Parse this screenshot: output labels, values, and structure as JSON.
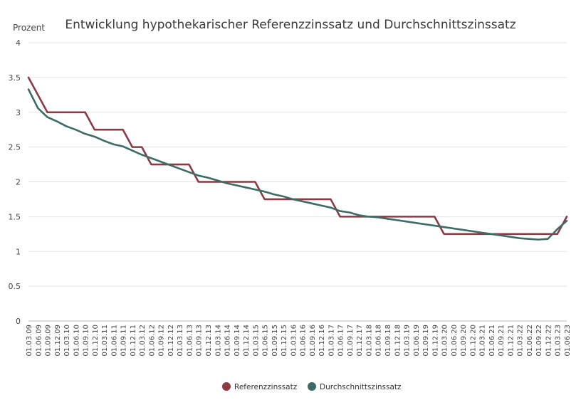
{
  "chart_data": {
    "type": "line",
    "title": "Entwicklung hypothekarischer Referenzzinssatz und Durchschnittszinssatz",
    "ylabel": "Prozent",
    "xlabel": "",
    "ylim": [
      0,
      4
    ],
    "yticks": [
      {
        "value": 0,
        "label": "0"
      },
      {
        "value": 0.5,
        "label": "0.5"
      },
      {
        "value": 1,
        "label": "1"
      },
      {
        "value": 1.5,
        "label": "1.5"
      },
      {
        "value": 2,
        "label": "2"
      },
      {
        "value": 2.5,
        "label": "2.5"
      },
      {
        "value": 3,
        "label": "3"
      },
      {
        "value": 3.5,
        "label": "3.5"
      },
      {
        "value": 4,
        "label": "4"
      }
    ],
    "grid": true,
    "legend_position": "bottom-center",
    "categories": [
      "01.03.09",
      "01.06.09",
      "01.09.09",
      "01.12.09",
      "01.03.10",
      "01.06.10",
      "01.09.10",
      "01.12.10",
      "01.03.11",
      "01.06.11",
      "01.09.11",
      "01.12.11",
      "01.03.12",
      "01.06.12",
      "01.09.12",
      "01.12.12",
      "01.03.13",
      "01.06.13",
      "01.09.13",
      "01.12.13",
      "01.03.14",
      "01.06.14",
      "01.09.14",
      "01.12.14",
      "01.03.15",
      "01.06.15",
      "01.09.15",
      "01.12.15",
      "01.03.16",
      "01.06.16",
      "01.09.16",
      "01.12.16",
      "01.03.17",
      "01.06.17",
      "01.09.17",
      "01.12.17",
      "01.03.18",
      "01.06.18",
      "01.09.18",
      "01.12.18",
      "01.03.19",
      "01.06.19",
      "01.09.19",
      "01.12.19",
      "01.03.20",
      "01.06.20",
      "01.09.20",
      "01.12.20",
      "01.03.21",
      "01.06.21",
      "01.09.21",
      "01.12.21",
      "01.03.22",
      "01.06.22",
      "01.09.22",
      "01.12.22",
      "01.03.23",
      "01.06.23"
    ],
    "series": [
      {
        "name": "Referenzzinssatz",
        "color": "#8b3a45",
        "values": [
          3.5,
          3.25,
          3.0,
          3.0,
          3.0,
          3.0,
          3.0,
          2.75,
          2.75,
          2.75,
          2.75,
          2.5,
          2.5,
          2.25,
          2.25,
          2.25,
          2.25,
          2.25,
          2.0,
          2.0,
          2.0,
          2.0,
          2.0,
          2.0,
          2.0,
          1.75,
          1.75,
          1.75,
          1.75,
          1.75,
          1.75,
          1.75,
          1.75,
          1.5,
          1.5,
          1.5,
          1.5,
          1.5,
          1.5,
          1.5,
          1.5,
          1.5,
          1.5,
          1.5,
          1.25,
          1.25,
          1.25,
          1.25,
          1.25,
          1.25,
          1.25,
          1.25,
          1.25,
          1.25,
          1.25,
          1.25,
          1.25,
          1.5
        ]
      },
      {
        "name": "Durchschnittszinssatz",
        "color": "#3d6b65",
        "values": [
          3.33,
          3.06,
          2.93,
          2.87,
          2.8,
          2.75,
          2.69,
          2.65,
          2.59,
          2.54,
          2.51,
          2.45,
          2.39,
          2.34,
          2.29,
          2.24,
          2.19,
          2.14,
          2.09,
          2.06,
          2.02,
          1.98,
          1.95,
          1.92,
          1.89,
          1.86,
          1.82,
          1.79,
          1.75,
          1.72,
          1.69,
          1.66,
          1.63,
          1.58,
          1.56,
          1.52,
          1.5,
          1.49,
          1.47,
          1.45,
          1.43,
          1.41,
          1.39,
          1.37,
          1.35,
          1.33,
          1.31,
          1.29,
          1.27,
          1.25,
          1.23,
          1.21,
          1.19,
          1.18,
          1.17,
          1.18,
          1.32,
          1.44
        ]
      }
    ]
  }
}
